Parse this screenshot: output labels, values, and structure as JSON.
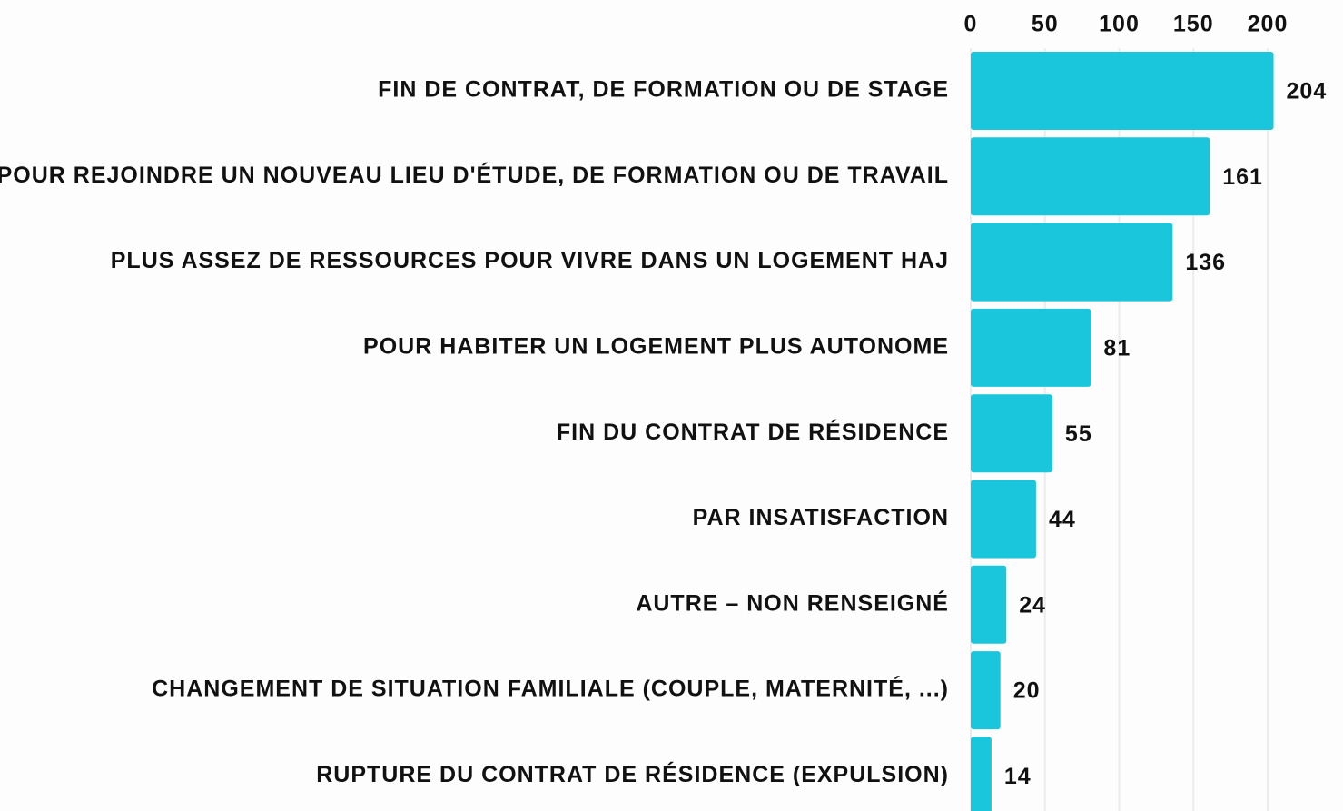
{
  "chart_data": {
    "type": "bar",
    "orientation": "horizontal",
    "categories": [
      "FIN DE CONTRAT, DE FORMATION OU DE STAGE",
      "POUR REJOINDRE UN NOUVEAU LIEU D'ÉTUDE, DE FORMATION OU DE TRAVAIL",
      "PLUS ASSEZ DE RESSOURCES POUR VIVRE DANS UN LOGEMENT HAJ",
      "POUR HABITER UN LOGEMENT PLUS AUTONOME",
      "FIN DU CONTRAT DE RÉSIDENCE",
      "PAR INSATISFACTION",
      "AUTRE – NON RENSEIGNÉ",
      "CHANGEMENT DE SITUATION FAMILIALE (COUPLE, MATERNITÉ, ...)",
      "RUPTURE DU CONTRAT DE RÉSIDENCE (EXPULSION)"
    ],
    "values": [
      204,
      161,
      136,
      81,
      55,
      44,
      24,
      20,
      14
    ],
    "color": "#19c6dc",
    "xlim": [
      0,
      200
    ],
    "xticks": [
      0,
      50,
      100,
      150,
      200
    ],
    "grid": true
  }
}
